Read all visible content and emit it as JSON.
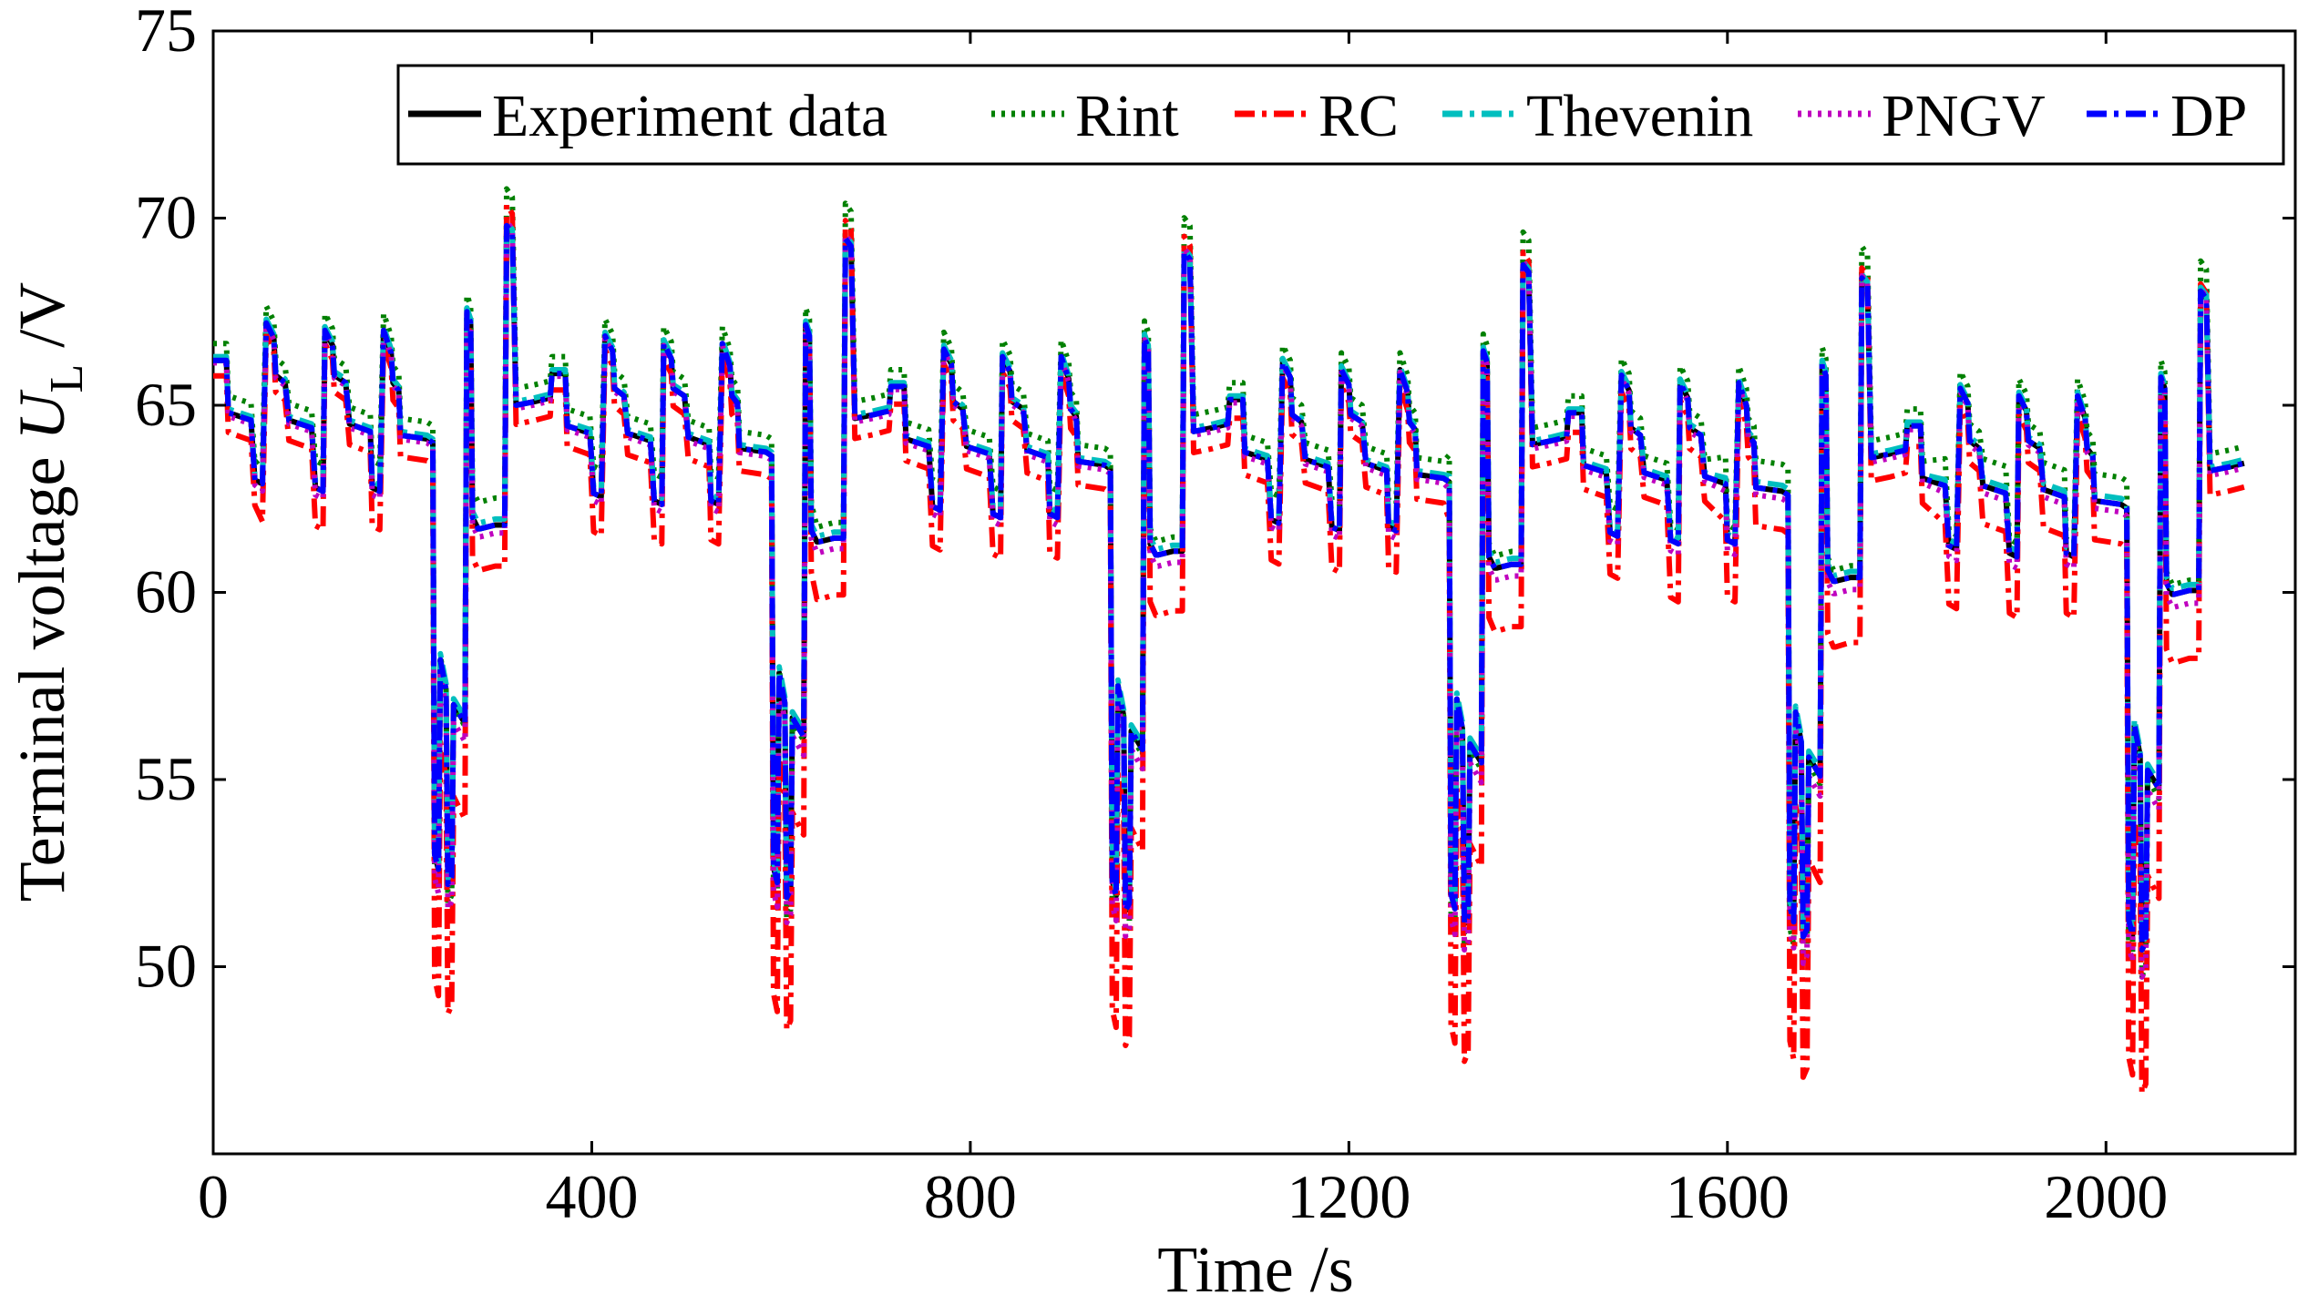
{
  "chart_data": {
    "type": "line",
    "title": "",
    "xlabel": "Time /s",
    "ylabel": {
      "prefix": "Terminal voltage ",
      "symbol": "U",
      "subscript": "L",
      "unit": " /V"
    },
    "xlim": [
      0,
      2200
    ],
    "ylim": [
      45,
      75
    ],
    "xticks": [
      0,
      400,
      800,
      1200,
      1600,
      2000
    ],
    "yticks": [
      50,
      55,
      60,
      65,
      70,
      75
    ],
    "legend_position": "top-right",
    "series": [
      {
        "name": "Experiment data",
        "color": "#000000",
        "style": "solid",
        "offset": 0.0,
        "scale": 1.0,
        "spike": 1.0
      },
      {
        "name": "Rint",
        "color": "#008000",
        "style": "dotted",
        "offset": 0.45,
        "scale": 1.0,
        "spike": 1.1
      },
      {
        "name": "RC",
        "color": "#ff0000",
        "style": "dashdot",
        "offset": -0.55,
        "scale": 1.08,
        "spike": 1.12
      },
      {
        "name": "Thevenin",
        "color": "#00bfbf",
        "style": "dashdot",
        "offset": 0.1,
        "scale": 1.0,
        "spike": 1.0
      },
      {
        "name": "PNGV",
        "color": "#bf00bf",
        "style": "dotted",
        "offset": -0.1,
        "scale": 1.02,
        "spike": 1.02
      },
      {
        "name": "DP",
        "color": "#0000ff",
        "style": "dashdot",
        "offset": 0.0,
        "scale": 1.0,
        "spike": 1.0
      }
    ],
    "cycle": {
      "period": 358,
      "starts": [
        0,
        358,
        716,
        1074,
        1432,
        1790
      ],
      "end": 2160,
      "points": [
        [
          0,
          66.2
        ],
        [
          14,
          66.2
        ],
        [
          16,
          64.8
        ],
        [
          40,
          64.6
        ],
        [
          44,
          63.0
        ],
        [
          52,
          62.9
        ],
        [
          56,
          67.2
        ],
        [
          64,
          66.8
        ],
        [
          66,
          65.8
        ],
        [
          76,
          65.6
        ],
        [
          80,
          64.6
        ],
        [
          104,
          64.4
        ],
        [
          108,
          62.8
        ],
        [
          116,
          62.7
        ],
        [
          118,
          67.0
        ],
        [
          126,
          66.6
        ],
        [
          128,
          65.8
        ],
        [
          140,
          65.6
        ],
        [
          144,
          64.5
        ],
        [
          166,
          64.3
        ],
        [
          168,
          62.8
        ],
        [
          176,
          62.7
        ],
        [
          180,
          67.0
        ],
        [
          188,
          66.4
        ],
        [
          190,
          65.6
        ],
        [
          196,
          65.4
        ],
        [
          198,
          64.2
        ],
        [
          226,
          64.1
        ],
        [
          232,
          64.0
        ],
        [
          234,
          53.0
        ],
        [
          238,
          52.6
        ],
        [
          240,
          58.2
        ],
        [
          246,
          57.4
        ],
        [
          248,
          52.2
        ],
        [
          252,
          52.4
        ],
        [
          254,
          57.0
        ],
        [
          266,
          56.5
        ],
        [
          268,
          67.5
        ],
        [
          272,
          67.2
        ],
        [
          274,
          62.0
        ],
        [
          280,
          61.7
        ],
        [
          282,
          61.7
        ],
        [
          298,
          61.8
        ],
        [
          308,
          61.8
        ],
        [
          310,
          69.8
        ],
        [
          316,
          69.6
        ],
        [
          320,
          65.0
        ],
        [
          340,
          65.1
        ],
        [
          356,
          65.2
        ]
      ]
    }
  }
}
